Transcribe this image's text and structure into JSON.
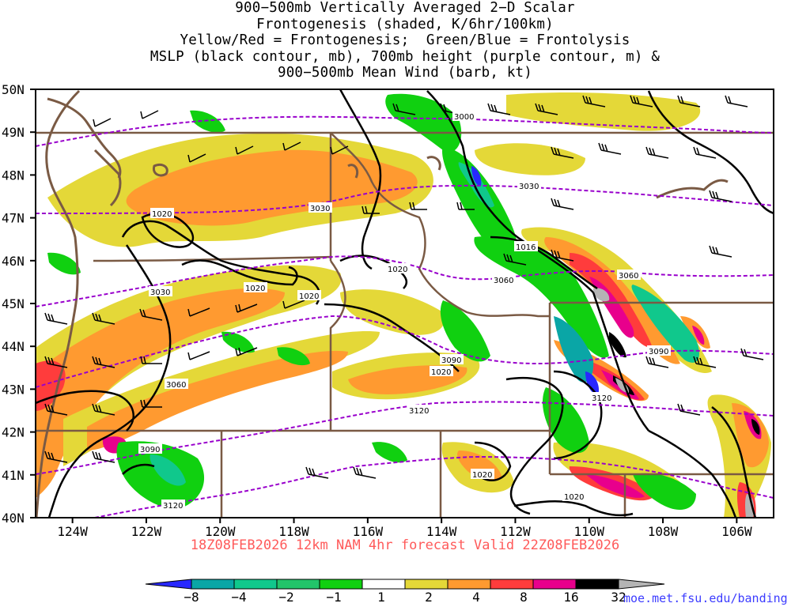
{
  "title": {
    "lines": [
      "900−500mb Vertically Averaged 2−D Scalar",
      "Frontogenesis (shaded, K/6hr/100km)",
      "Yellow/Red = Frontogenesis;  Green/Blue = Frontolysis",
      "MSLP (black contour, mb), 700mb height (purple contour, m) &",
      "900−500mb Mean Wind (barb, kt)"
    ]
  },
  "map": {
    "lat_labels": [
      "50N",
      "49N",
      "48N",
      "47N",
      "46N",
      "45N",
      "44N",
      "43N",
      "42N",
      "41N",
      "40N"
    ],
    "lon_labels": [
      "124W",
      "122W",
      "120W",
      "118W",
      "116W",
      "114W",
      "112W",
      "110W",
      "108W",
      "106W"
    ],
    "lat_range": [
      40,
      50
    ],
    "lon_range": [
      -125,
      -105
    ],
    "mslp_label": "1020",
    "mslp_label_2": "1016",
    "height_labels": [
      "3000",
      "3030",
      "3060",
      "3090",
      "3120"
    ]
  },
  "valid_line": "18Z08FEB2026 12km NAM 4hr forecast Valid 22Z08FEB2026",
  "colorbar": {
    "labels": [
      "−8",
      "−4",
      "−2",
      "−1",
      "1",
      "2",
      "4",
      "8",
      "16",
      "32"
    ],
    "colors": [
      "#2828ff",
      "#0aa6a6",
      "#10c88c",
      "#22c46a",
      "#10d010",
      "#ffffff",
      "#e4d838",
      "#ff9a30",
      "#ff3c3c",
      "#e8008c",
      "#000000",
      "#b4b4b4"
    ]
  },
  "credit": "moe.met.fsu.edu/banding",
  "colors": {
    "state_border": "#7a5a44",
    "mslp": "#000000",
    "height": "#9900cc"
  }
}
